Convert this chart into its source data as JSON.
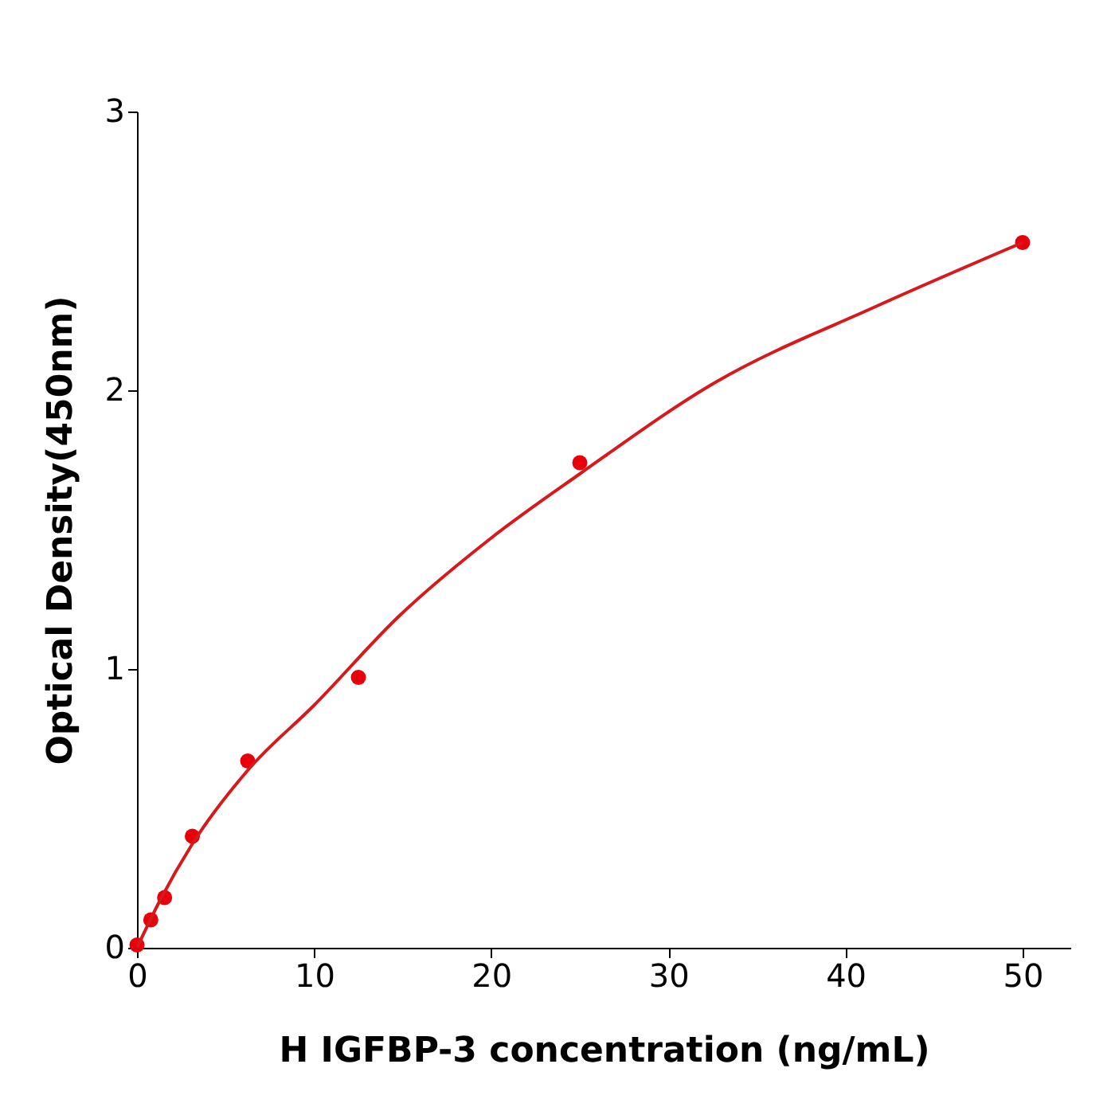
{
  "chart_data": {
    "type": "scatter",
    "xlabel": "H  IGFBP-3 concentration (ng/mL)",
    "ylabel": "Optical Density(450nm)",
    "x": [
      0,
      0.78,
      1.56,
      3.125,
      6.25,
      12.5,
      25,
      50
    ],
    "series": [
      {
        "color": "#e8000b",
        "marker": "circle",
        "values": [
          0.01,
          0.1,
          0.18,
          0.4,
          0.67,
          0.97,
          1.74,
          2.53
        ]
      },
      {
        "type": "line",
        "color": "#d7191c",
        "line_style": "solid",
        "x": [
          0,
          1.3,
          3.1,
          6.3,
          10,
          14.8,
          20,
          25,
          32.7,
          41.7,
          50
        ],
        "values": [
          0.0,
          0.17,
          0.37,
          0.64,
          0.87,
          1.19,
          1.47,
          1.7,
          2.03,
          2.3,
          2.53
        ]
      }
    ],
    "xlim": [
      0,
      52.7
    ],
    "ylim": [
      0,
      3
    ],
    "xticks": [
      0,
      10,
      20,
      30,
      40,
      50
    ],
    "yticks": [
      0,
      1,
      2,
      3
    ],
    "grid": false
  }
}
